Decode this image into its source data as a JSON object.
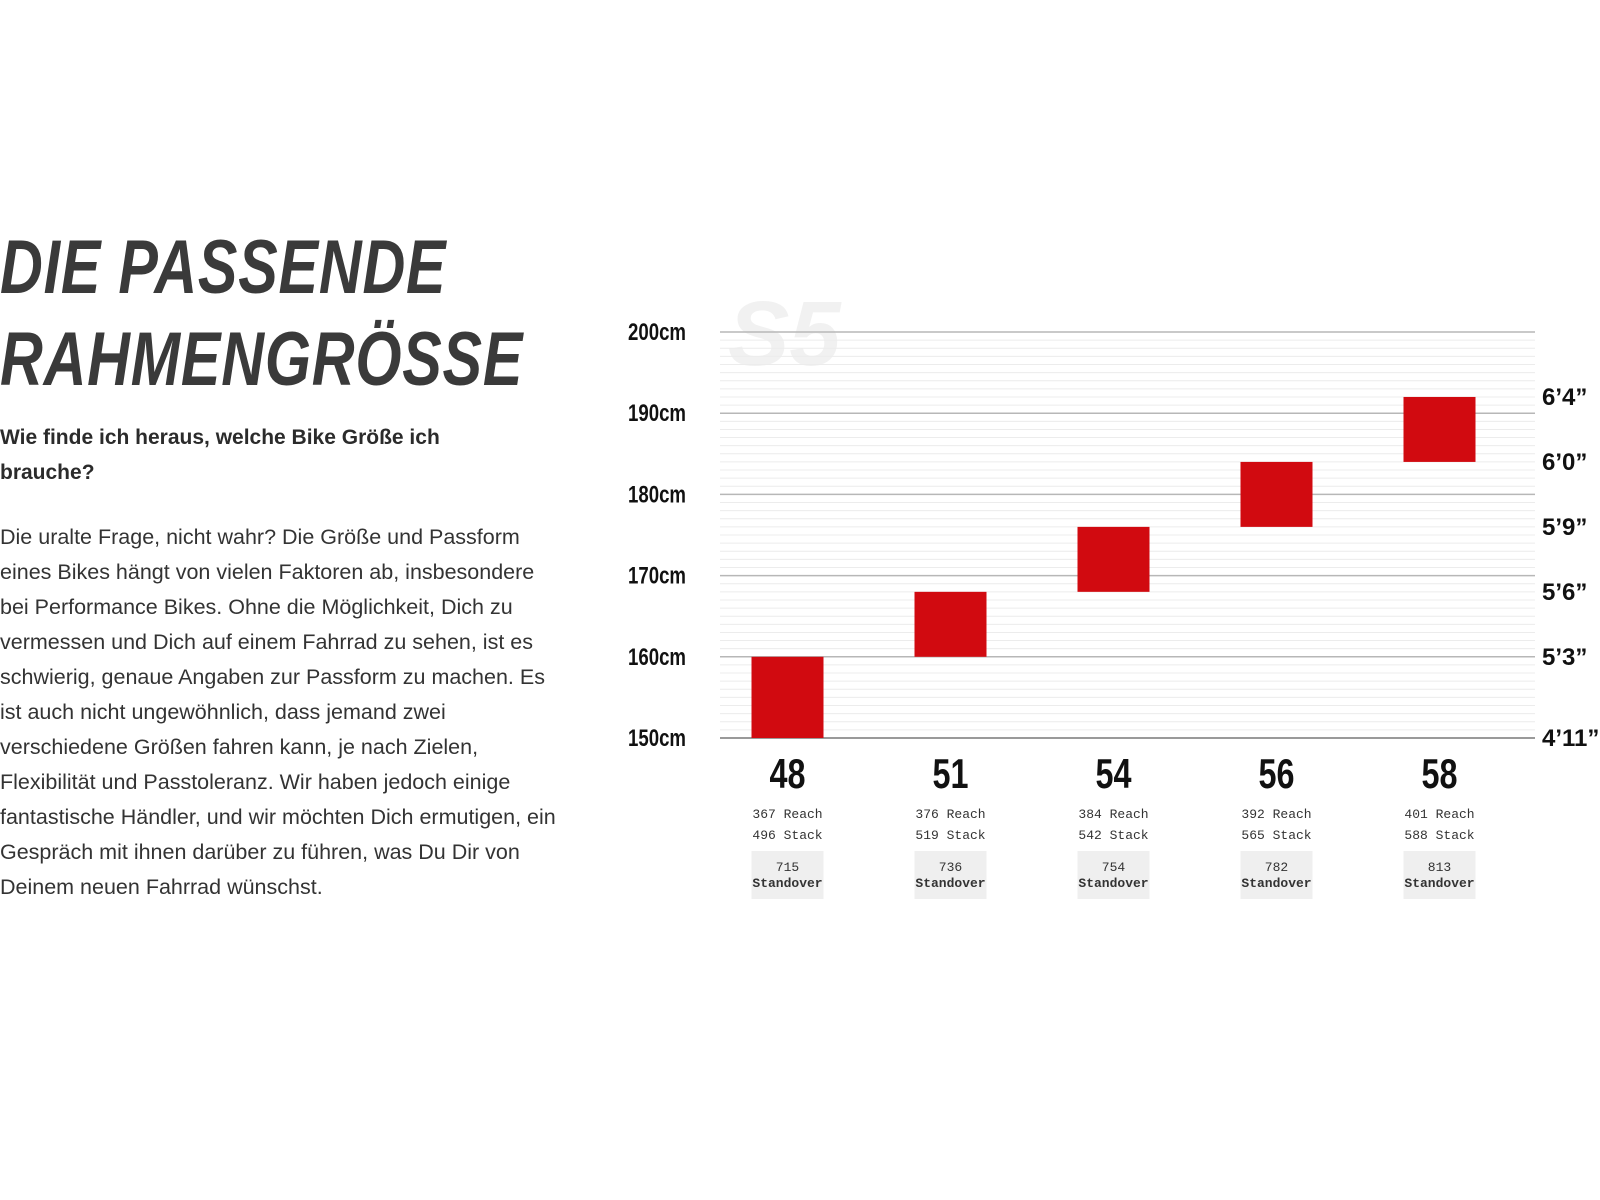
{
  "headline": {
    "line1": "DIE PASSENDE",
    "line2": "RAHMENGRÖSSE"
  },
  "subheading": "Wie finde ich heraus, welche Bike Größe ich brauche?",
  "body": "Die uralte Frage, nicht wahr? Die Größe und Passform eines Bikes hängt von vielen Faktoren ab, insbesondere bei Performance Bikes. Ohne die Möglichkeit, Dich zu vermessen und Dich auf einem Fahrrad zu sehen, ist es schwierig, genaue Angaben zur Passform zu machen. Es ist auch nicht ungewöhnlich, dass jemand zwei verschiedene Größen fahren kann, je nach Zielen, Flexibilität und Passtoleranz. Wir haben jedoch einige fantastische Händler, und wir möchten Dich ermutigen, ein Gespräch mit ihnen darüber zu führen, was Du Dir von Deinem neuen Fahrrad wünschst.",
  "chart_data": {
    "type": "bar",
    "watermark": "S5",
    "ylim": [
      150,
      200
    ],
    "yticks_left": [
      "150cm",
      "160cm",
      "170cm",
      "180cm",
      "190cm",
      "200cm"
    ],
    "yticks_left_values": [
      150,
      160,
      170,
      180,
      190,
      200
    ],
    "yticks_right": [
      "4’11”",
      "5’3”",
      "5’6”",
      "5’9”",
      "6’0”",
      "6’4”"
    ],
    "yticks_right_values": [
      150,
      160,
      168,
      176,
      184,
      192
    ],
    "grid": true,
    "bar_color": "#d10a10",
    "frames": [
      {
        "size": "48",
        "min": 150,
        "max": 160,
        "reach": "367 Reach",
        "stack": "496 Stack",
        "standover": "715",
        "standover_label": "Standover"
      },
      {
        "size": "51",
        "min": 160,
        "max": 168,
        "reach": "376 Reach",
        "stack": "519 Stack",
        "standover": "736",
        "standover_label": "Standover"
      },
      {
        "size": "54",
        "min": 168,
        "max": 176,
        "reach": "384 Reach",
        "stack": "542 Stack",
        "standover": "754",
        "standover_label": "Standover"
      },
      {
        "size": "56",
        "min": 176,
        "max": 184,
        "reach": "392 Reach",
        "stack": "565 Stack",
        "standover": "782",
        "standover_label": "Standover"
      },
      {
        "size": "58",
        "min": 184,
        "max": 192,
        "reach": "401 Reach",
        "stack": "588 Stack",
        "standover": "813",
        "standover_label": "Standover"
      }
    ]
  }
}
